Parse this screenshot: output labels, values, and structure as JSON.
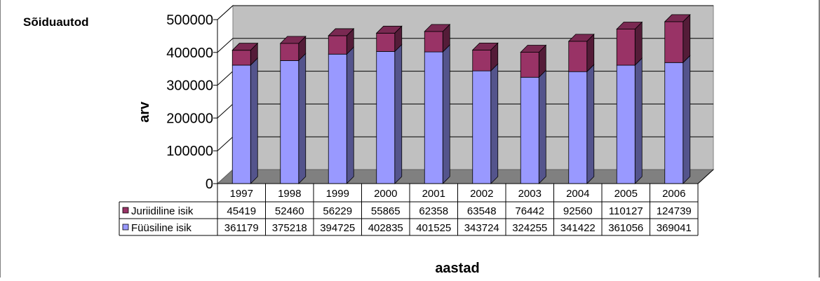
{
  "chart_data": {
    "type": "bar",
    "stacked": true,
    "title": "Sõiduautod",
    "ylabel": "arv",
    "xlabel": "aastad",
    "ylim": [
      0,
      500000
    ],
    "yticks": [
      "0",
      "100000",
      "200000",
      "300000",
      "400000",
      "500000"
    ],
    "categories": [
      "1997",
      "1998",
      "1999",
      "2000",
      "2001",
      "2002",
      "2003",
      "2004",
      "2005",
      "2006"
    ],
    "grid": true,
    "legend_placement": "data-table-left",
    "series": [
      {
        "name": "Füüsiline isik",
        "color": "#9999ff",
        "values": [
          361179,
          375218,
          394725,
          402835,
          401525,
          343724,
          324255,
          341422,
          361056,
          369041
        ]
      },
      {
        "name": "Juriidiline isik",
        "color": "#993366",
        "values": [
          45419,
          52460,
          56229,
          55865,
          62358,
          63548,
          76442,
          92560,
          110127,
          124739
        ]
      }
    ],
    "table_rows": [
      "Juriidiline isik",
      "Füüsiline isik"
    ]
  }
}
